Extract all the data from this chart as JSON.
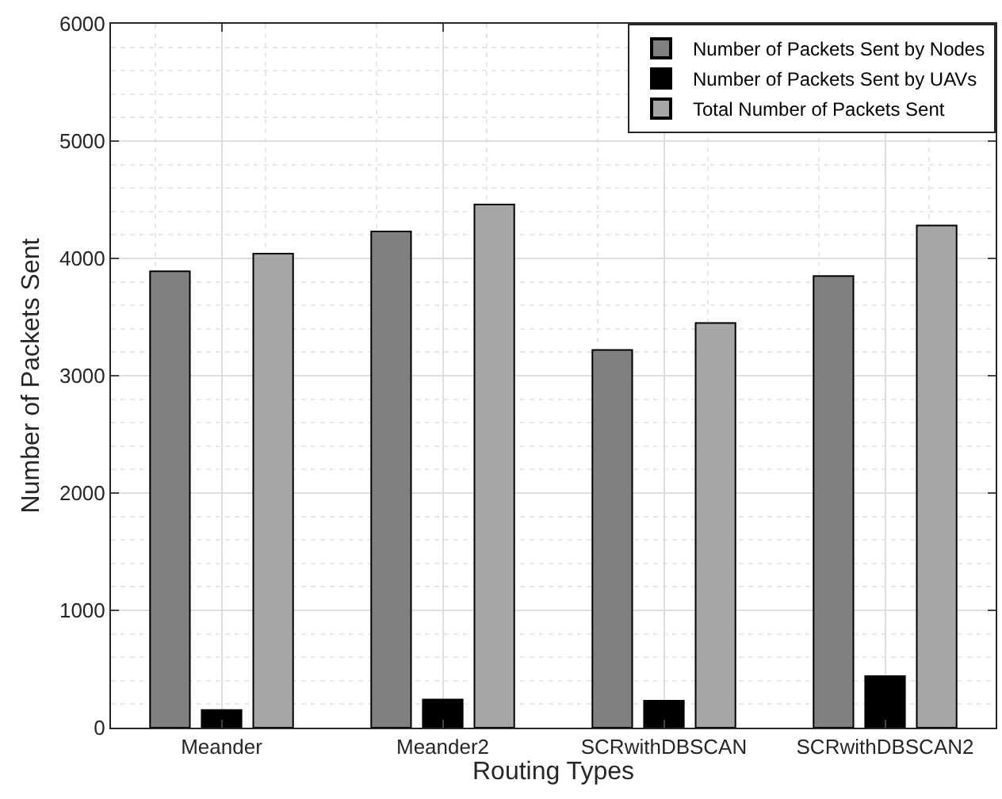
{
  "chart_data": {
    "type": "bar",
    "xlabel": "Routing Types",
    "ylabel": "Number of Packets Sent",
    "categories": [
      "Meander",
      "Meander2",
      "SCRwithDBSCAN",
      "SCRwithDBSCAN2"
    ],
    "series": [
      {
        "name": "Number of Packets Sent by Nodes",
        "color": "#808080",
        "values": [
          3890,
          4230,
          3220,
          3850
        ]
      },
      {
        "name": "Number of Packets Sent by UAVs",
        "color": "#000000",
        "values": [
          150,
          240,
          230,
          440
        ]
      },
      {
        "name": "Total Number of Packets Sent",
        "color": "#a6a6a6",
        "values": [
          4040,
          4460,
          3450,
          4280
        ]
      }
    ],
    "ylim": [
      0,
      6000
    ],
    "yticks": [
      0,
      1000,
      2000,
      3000,
      4000,
      5000,
      6000
    ],
    "grid": true,
    "legend": "top right"
  }
}
